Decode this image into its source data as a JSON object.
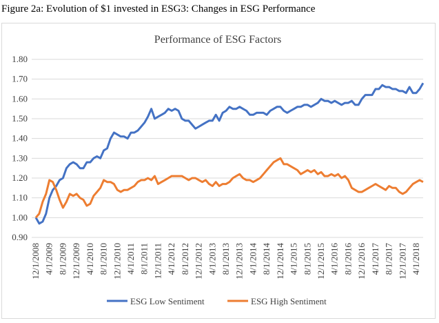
{
  "caption": "Figure 2a: Evolution of $1 invested in ESG3: Changes in ESG Performance",
  "chart_data": {
    "type": "line",
    "title": "Performance of ESG Factors",
    "categories": [
      "12/1/2008",
      null,
      null,
      null,
      "4/1/2009",
      null,
      null,
      null,
      "8/1/2009",
      null,
      null,
      null,
      "12/1/2009",
      null,
      null,
      null,
      "4/1/2010",
      null,
      null,
      null,
      "8/1/2010",
      null,
      null,
      null,
      "12/1/2010",
      null,
      null,
      null,
      "4/1/2011",
      null,
      null,
      null,
      "8/1/2011",
      null,
      null,
      null,
      "12/1/2011",
      null,
      null,
      null,
      "4/1/2012",
      null,
      null,
      null,
      "8/1/2012",
      null,
      null,
      null,
      "12/1/2012",
      null,
      null,
      null,
      "4/1/2013",
      null,
      null,
      null,
      "8/1/2013",
      null,
      null,
      null,
      "12/1/2013",
      null,
      null,
      null,
      "4/1/2014",
      null,
      null,
      null,
      "8/1/2014",
      null,
      null,
      null,
      "12/1/2014",
      null,
      null,
      null,
      "4/1/2015",
      null,
      null,
      null,
      "8/1/2015",
      null,
      null,
      null,
      "12/1/2015",
      null,
      null,
      null,
      "4/1/2016",
      null,
      null,
      null,
      "8/1/2016",
      null,
      null,
      null,
      "12/1/2016",
      null,
      null,
      null,
      "4/1/2017",
      null,
      null,
      null,
      "8/1/2017",
      null,
      null,
      null,
      "12/1/2017",
      null,
      null,
      null,
      "4/1/2018",
      null,
      null
    ],
    "series": [
      {
        "name": "ESG Low Sentiment",
        "color": "#4472c4",
        "values": [
          1.0,
          0.97,
          0.98,
          1.02,
          1.1,
          1.14,
          1.16,
          1.19,
          1.2,
          1.25,
          1.27,
          1.28,
          1.27,
          1.25,
          1.25,
          1.28,
          1.28,
          1.3,
          1.31,
          1.3,
          1.34,
          1.35,
          1.4,
          1.43,
          1.42,
          1.41,
          1.41,
          1.4,
          1.43,
          1.43,
          1.44,
          1.46,
          1.48,
          1.51,
          1.55,
          1.5,
          1.51,
          1.52,
          1.53,
          1.55,
          1.54,
          1.55,
          1.54,
          1.5,
          1.49,
          1.49,
          1.47,
          1.45,
          1.46,
          1.47,
          1.48,
          1.49,
          1.49,
          1.52,
          1.49,
          1.53,
          1.54,
          1.56,
          1.55,
          1.55,
          1.56,
          1.55,
          1.54,
          1.52,
          1.52,
          1.53,
          1.53,
          1.53,
          1.52,
          1.54,
          1.55,
          1.56,
          1.56,
          1.54,
          1.53,
          1.54,
          1.55,
          1.56,
          1.56,
          1.57,
          1.57,
          1.56,
          1.57,
          1.58,
          1.6,
          1.59,
          1.59,
          1.58,
          1.59,
          1.58,
          1.57,
          1.58,
          1.58,
          1.59,
          1.57,
          1.57,
          1.6,
          1.62,
          1.62,
          1.62,
          1.65,
          1.65,
          1.67,
          1.66,
          1.66,
          1.65,
          1.65,
          1.64,
          1.64,
          1.63,
          1.66,
          1.63,
          1.63,
          1.65,
          1.68
        ]
      },
      {
        "name": "ESG High Sentiment",
        "color": "#ed7d31",
        "values": [
          1.0,
          1.02,
          1.08,
          1.12,
          1.19,
          1.18,
          1.14,
          1.09,
          1.05,
          1.08,
          1.12,
          1.11,
          1.12,
          1.1,
          1.09,
          1.06,
          1.07,
          1.11,
          1.13,
          1.15,
          1.19,
          1.18,
          1.18,
          1.17,
          1.14,
          1.13,
          1.14,
          1.14,
          1.15,
          1.16,
          1.18,
          1.19,
          1.19,
          1.2,
          1.19,
          1.21,
          1.17,
          1.18,
          1.19,
          1.2,
          1.21,
          1.21,
          1.21,
          1.21,
          1.2,
          1.19,
          1.2,
          1.2,
          1.19,
          1.18,
          1.19,
          1.17,
          1.16,
          1.18,
          1.16,
          1.17,
          1.17,
          1.18,
          1.2,
          1.21,
          1.22,
          1.2,
          1.19,
          1.19,
          1.18,
          1.19,
          1.2,
          1.22,
          1.24,
          1.26,
          1.28,
          1.29,
          1.3,
          1.27,
          1.27,
          1.26,
          1.25,
          1.24,
          1.22,
          1.23,
          1.24,
          1.23,
          1.24,
          1.22,
          1.23,
          1.21,
          1.21,
          1.22,
          1.21,
          1.22,
          1.2,
          1.21,
          1.19,
          1.15,
          1.14,
          1.13,
          1.13,
          1.14,
          1.15,
          1.16,
          1.17,
          1.16,
          1.15,
          1.14,
          1.16,
          1.15,
          1.15,
          1.13,
          1.12,
          1.13,
          1.15,
          1.17,
          1.18,
          1.19,
          1.18
        ]
      }
    ],
    "ylim": [
      0.9,
      1.8
    ],
    "yticks": [
      {
        "value": 0.9,
        "label": "0.90"
      },
      {
        "value": 1.0,
        "label": "1.00"
      },
      {
        "value": 1.1,
        "label": "1.10"
      },
      {
        "value": 1.2,
        "label": "1.20"
      },
      {
        "value": 1.3,
        "label": "1.30"
      },
      {
        "value": 1.4,
        "label": "1.40"
      },
      {
        "value": 1.5,
        "label": "1.50"
      },
      {
        "value": 1.6,
        "label": "1.60"
      },
      {
        "value": 1.7,
        "label": "1.70"
      },
      {
        "value": 1.8,
        "label": "1.80"
      }
    ],
    "grid": true,
    "legend": "bottom"
  }
}
